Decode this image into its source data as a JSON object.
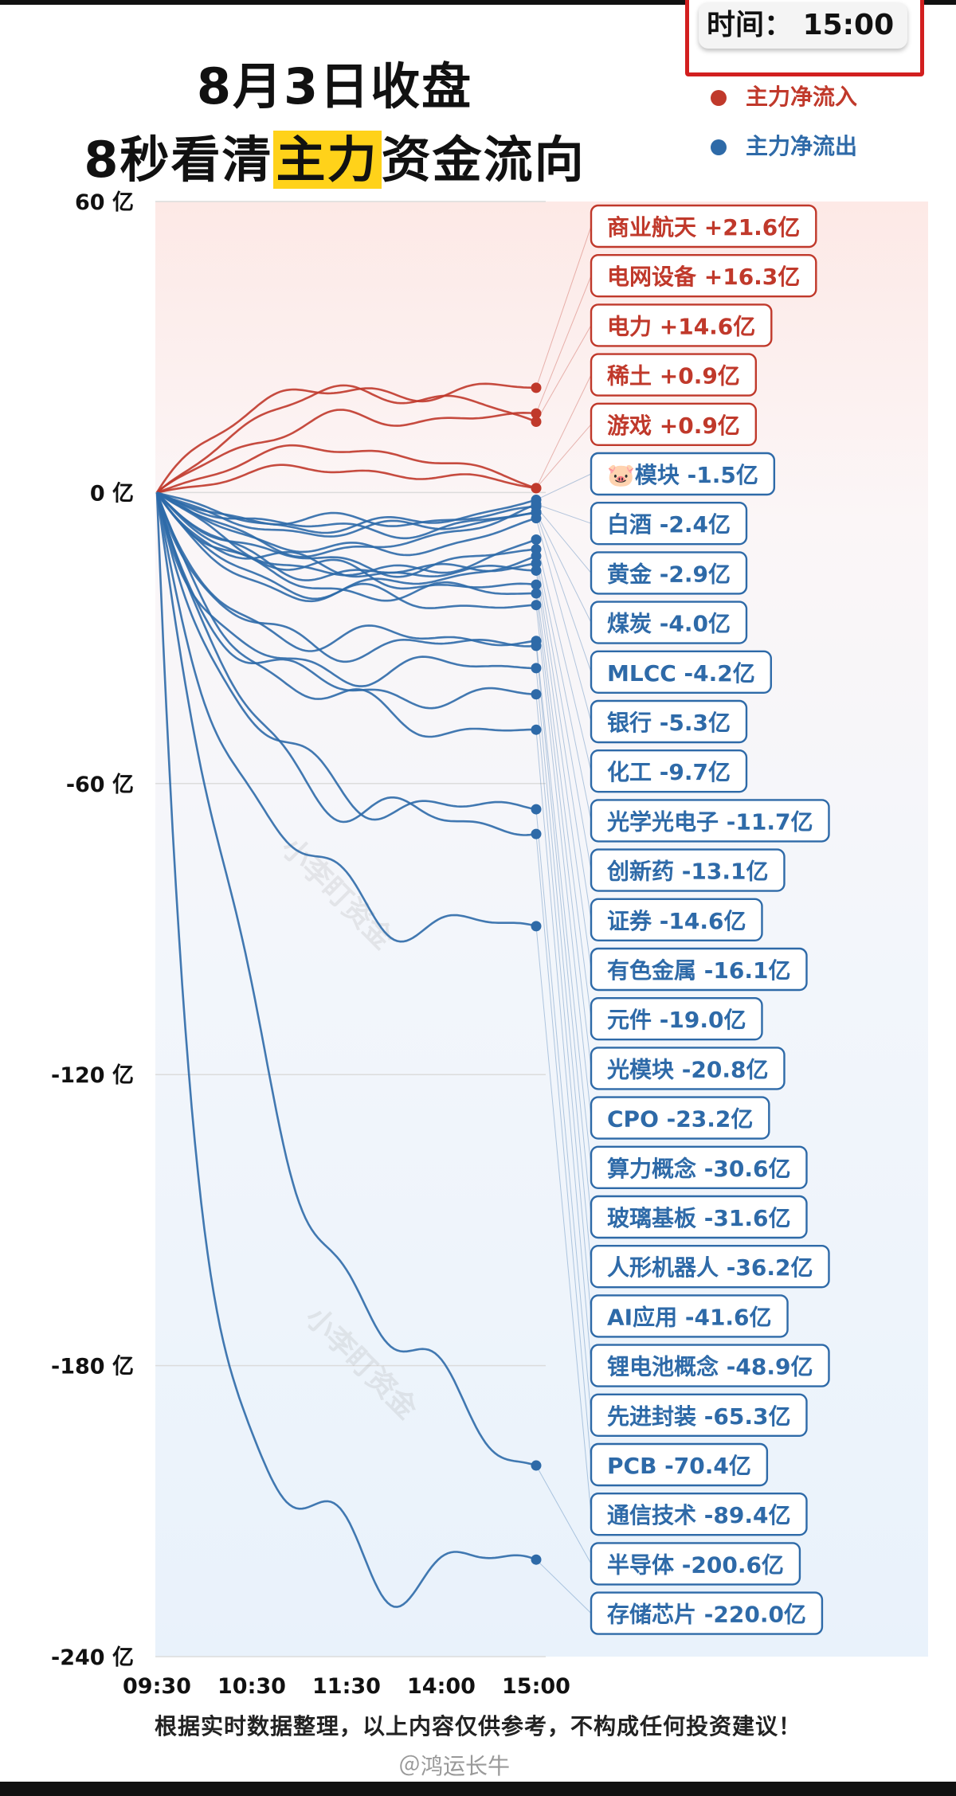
{
  "title": {
    "line1": "8月3日收盘",
    "line2_pre": "8秒看清",
    "line2_hl": "主力",
    "line2_post": "资金流向"
  },
  "time_label": "时间：",
  "time_value": "15:00",
  "legend": [
    {
      "label": "主力净流入",
      "color": "#c0392b"
    },
    {
      "label": "主力净流出",
      "color": "#2e6aa8"
    }
  ],
  "watermark": "小李盯资金",
  "disclaimer": "根据实时数据整理，以上内容仅供参考，不构成任何投资建议！",
  "weibo_handle": "＠鸿运长牛",
  "chart_data": {
    "type": "line",
    "y_unit": "亿",
    "ylim": [
      -240,
      60
    ],
    "yticks": [
      60,
      0,
      -60,
      -120,
      -180,
      -240
    ],
    "x_ticks": [
      "09:30",
      "10:30",
      "11:30",
      "14:00",
      "15:00"
    ],
    "colors": {
      "inflow": "#c0392b",
      "outflow": "#2e6aa8"
    },
    "series": [
      {
        "name": "商业航天",
        "label": "商业航天 +21.6亿",
        "final": 21.6
      },
      {
        "name": "电网设备",
        "label": "电网设备 +16.3亿",
        "final": 16.3
      },
      {
        "name": "电力",
        "label": "电力 +14.6亿",
        "final": 14.6
      },
      {
        "name": "稀土",
        "label": "稀土 +0.9亿",
        "final": 0.9
      },
      {
        "name": "游戏",
        "label": "游戏 +0.9亿",
        "final": 0.9
      },
      {
        "name": "模块",
        "label": "🐷模块 -1.5亿",
        "final": -1.5
      },
      {
        "name": "白酒",
        "label": "白酒 -2.4亿",
        "final": -2.4
      },
      {
        "name": "黄金",
        "label": "黄金 -2.9亿",
        "final": -2.9
      },
      {
        "name": "煤炭",
        "label": "煤炭 -4.0亿",
        "final": -4.0
      },
      {
        "name": "MLCC",
        "label": "MLCC -4.2亿",
        "final": -4.2
      },
      {
        "name": "银行",
        "label": "银行 -5.3亿",
        "final": -5.3
      },
      {
        "name": "化工",
        "label": "化工 -9.7亿",
        "final": -9.7
      },
      {
        "name": "光学光电子",
        "label": "光学光电子 -11.7亿",
        "final": -11.7
      },
      {
        "name": "创新药",
        "label": "创新药 -13.1亿",
        "final": -13.1
      },
      {
        "name": "证券",
        "label": "证券 -14.6亿",
        "final": -14.6
      },
      {
        "name": "有色金属",
        "label": "有色金属 -16.1亿",
        "final": -16.1
      },
      {
        "name": "元件",
        "label": "元件 -19.0亿",
        "final": -19.0
      },
      {
        "name": "光模块",
        "label": "光模块 -20.8亿",
        "final": -20.8
      },
      {
        "name": "CPO",
        "label": "CPO -23.2亿",
        "final": -23.2
      },
      {
        "name": "算力概念",
        "label": "算力概念 -30.6亿",
        "final": -30.6
      },
      {
        "name": "玻璃基板",
        "label": "玻璃基板 -31.6亿",
        "final": -31.6
      },
      {
        "name": "人形机器人",
        "label": "人形机器人 -36.2亿",
        "final": -36.2
      },
      {
        "name": "AI应用",
        "label": "AI应用 -41.6亿",
        "final": -41.6
      },
      {
        "name": "锂电池概念",
        "label": "锂电池概念 -48.9亿",
        "final": -48.9
      },
      {
        "name": "先进封装",
        "label": "先进封装 -65.3亿",
        "final": -65.3
      },
      {
        "name": "PCB",
        "label": "PCB -70.4亿",
        "final": -70.4
      },
      {
        "name": "通信技术",
        "label": "通信技术 -89.4亿",
        "final": -89.4
      },
      {
        "name": "半导体",
        "label": "半导体 -200.6亿",
        "final": -200.6
      },
      {
        "name": "存储芯片",
        "label": "存储芯片 -220.0亿",
        "final": -220.0
      }
    ]
  }
}
